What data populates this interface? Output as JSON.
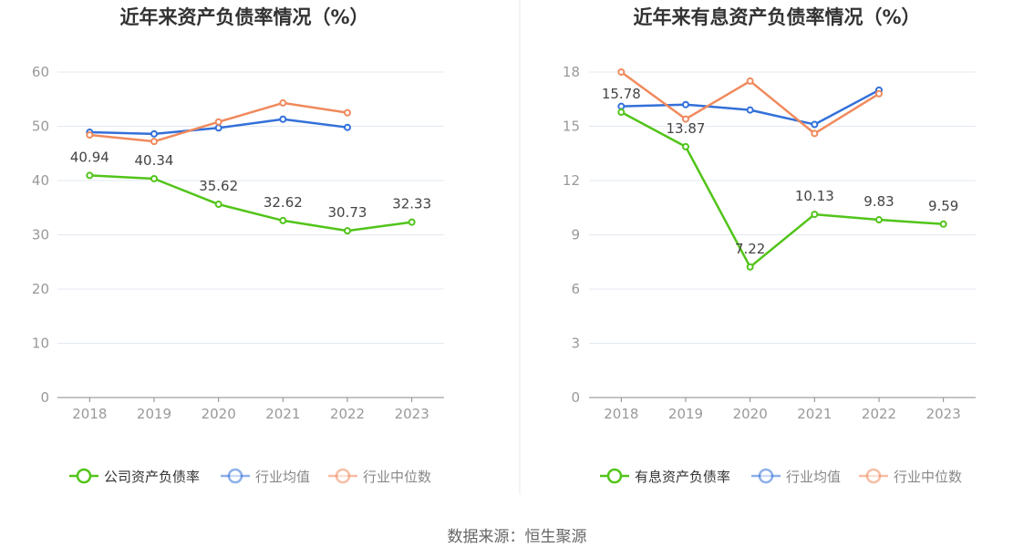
{
  "colors": {
    "company": "#52c41a",
    "average": "#3370d9",
    "median": "#f08a5d",
    "axis": "#aaaaaa",
    "grid": "#e3e8f0",
    "divider": "#e8e8e8"
  },
  "source_label": "数据来源：恒生聚源",
  "chart_data": [
    {
      "type": "line",
      "title": "近年来资产负债率情况（%）",
      "categories": [
        "2018",
        "2019",
        "2020",
        "2021",
        "2022",
        "2023"
      ],
      "ylim": [
        0,
        60
      ],
      "yticks": [
        0,
        10,
        20,
        30,
        40,
        50,
        60
      ],
      "grid": true,
      "legend_position": "bottom",
      "series": [
        {
          "name": "公司资产负债率",
          "key": "company",
          "values": [
            40.94,
            40.34,
            35.62,
            32.62,
            30.73,
            32.33
          ],
          "labels": [
            "40.94",
            "40.34",
            "35.62",
            "32.62",
            "30.73",
            "32.33"
          ]
        },
        {
          "name": "行业均值",
          "key": "average",
          "values": [
            48.9,
            48.6,
            49.7,
            51.3,
            49.8,
            null
          ],
          "labels": []
        },
        {
          "name": "行业中位数",
          "key": "median",
          "values": [
            48.4,
            47.2,
            50.8,
            54.3,
            52.5,
            null
          ],
          "labels": []
        }
      ]
    },
    {
      "type": "line",
      "title": "近年来有息资产负债率情况（%）",
      "categories": [
        "2018",
        "2019",
        "2020",
        "2021",
        "2022",
        "2023"
      ],
      "ylim": [
        0,
        18
      ],
      "yticks": [
        0,
        3,
        6,
        9,
        12,
        15,
        18
      ],
      "grid": true,
      "legend_position": "bottom",
      "series": [
        {
          "name": "有息资产负债率",
          "key": "company",
          "values": [
            15.78,
            13.87,
            7.22,
            10.13,
            9.83,
            9.59
          ],
          "labels": [
            "15.78",
            "13.87",
            "7.22",
            "10.13",
            "9.83",
            "9.59"
          ]
        },
        {
          "name": "行业均值",
          "key": "average",
          "values": [
            16.1,
            16.2,
            15.9,
            15.1,
            17.0,
            null
          ],
          "labels": []
        },
        {
          "name": "行业中位数",
          "key": "median",
          "values": [
            18.0,
            15.4,
            17.5,
            14.6,
            16.8,
            null
          ],
          "labels": []
        }
      ]
    }
  ]
}
